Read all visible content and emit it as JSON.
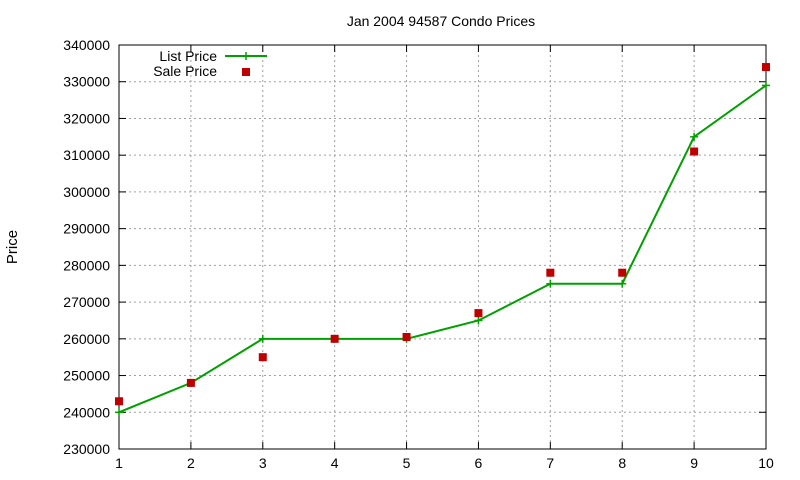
{
  "chart_data": {
    "type": "line",
    "title": "Jan 2004 94587 Condo Prices",
    "xlabel": "",
    "ylabel": "Price",
    "xlim": [
      1,
      10
    ],
    "ylim": [
      230000,
      340000
    ],
    "x_ticks": [
      1,
      2,
      3,
      4,
      5,
      6,
      7,
      8,
      9,
      10
    ],
    "y_ticks": [
      230000,
      240000,
      250000,
      260000,
      270000,
      280000,
      290000,
      300000,
      310000,
      320000,
      330000,
      340000
    ],
    "grid": true,
    "legend_position": "top-left",
    "series": [
      {
        "name": "List Price",
        "style": "linespoints",
        "color": "#00a000",
        "x": [
          1,
          2,
          3,
          4,
          5,
          6,
          7,
          8,
          9,
          10
        ],
        "y": [
          240000,
          248000,
          260000,
          260000,
          260000,
          265000,
          275000,
          275000,
          315000,
          329000
        ]
      },
      {
        "name": "Sale Price",
        "style": "points",
        "color": "#c00000",
        "x": [
          1,
          2,
          3,
          4,
          5,
          6,
          7,
          8,
          9,
          10
        ],
        "y": [
          243000,
          248000,
          255000,
          260000,
          260500,
          267000,
          278000,
          278000,
          311000,
          334000
        ]
      }
    ]
  }
}
